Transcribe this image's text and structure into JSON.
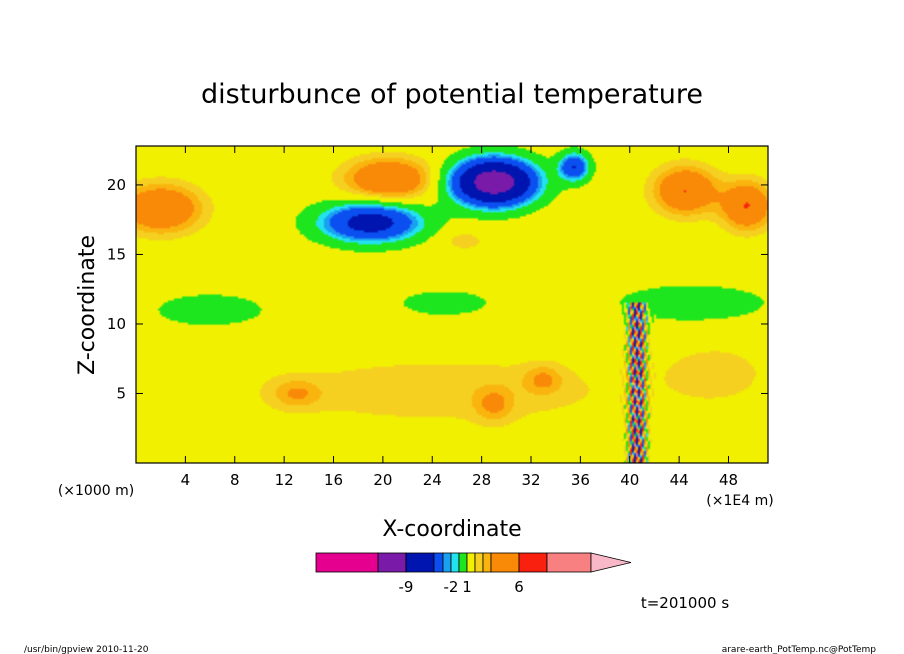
{
  "chart_data": {
    "type": "heatmap",
    "title": "disturbunce of potential temperature",
    "xlabel": "X-coordinate",
    "ylabel": "Z-coordinate",
    "x_unit_left": "(×1000 m)",
    "x_unit_right": "(×1E4 m)",
    "x_ticks": [
      4,
      8,
      12,
      16,
      20,
      24,
      28,
      32,
      36,
      40,
      44,
      48
    ],
    "y_ticks": [
      5,
      10,
      15,
      20
    ],
    "xlim": [
      0,
      51.2
    ],
    "ylim": [
      0,
      22.8
    ],
    "grid": false,
    "time_label": "t=201000 s",
    "colorbar": {
      "colors": [
        "#e5008f",
        "#7a1aa8",
        "#0015b0",
        "#0c4ff0",
        "#1aa0f0",
        "#22e2f0",
        "#1ee61e",
        "#f0f000",
        "#f5d020",
        "#f9b50e",
        "#f98a08",
        "#f92010",
        "#f98080",
        "#f9b8c8"
      ],
      "tick_labels": [
        "-9",
        "-2",
        "1",
        "6"
      ],
      "extend": "max"
    },
    "features": [
      {
        "type": "blob",
        "x": 2.0,
        "z": 18.3,
        "rx": 3.2,
        "rz": 1.7,
        "v": 3
      },
      {
        "type": "blob",
        "x": 20.5,
        "z": 20.4,
        "rx": 3.5,
        "rz": 1.5,
        "v": 3
      },
      {
        "type": "blob",
        "x": 44.5,
        "z": 19.6,
        "rx": 2.5,
        "rz": 1.7,
        "v": 3
      },
      {
        "type": "blob",
        "x": 49.5,
        "z": 18.5,
        "rx": 2.0,
        "rz": 1.7,
        "v": 3
      },
      {
        "type": "blob",
        "x": 29.0,
        "z": 20.2,
        "rx": 3.2,
        "rz": 1.6,
        "v": -9
      },
      {
        "type": "blob",
        "x": 19.0,
        "z": 17.3,
        "rx": 4.0,
        "rz": 1.4,
        "v": -5
      },
      {
        "type": "blob",
        "x": 35.5,
        "z": 21.3,
        "rx": 1.2,
        "rz": 1.0,
        "v": -4
      },
      {
        "type": "blob",
        "x": 26.5,
        "z": 16.0,
        "rx": 2.0,
        "rz": 0.8,
        "v": 0.8
      },
      {
        "type": "blob",
        "x": 6.0,
        "z": 11.0,
        "rx": 5.0,
        "rz": 1.3,
        "v": -1
      },
      {
        "type": "blob",
        "x": 25.0,
        "z": 11.5,
        "rx": 4.0,
        "rz": 1.0,
        "v": -1
      },
      {
        "type": "blob",
        "x": 45.0,
        "z": 11.5,
        "rx": 7.0,
        "rz": 1.5,
        "v": -1
      },
      {
        "type": "blob",
        "x": 25.0,
        "z": 5.2,
        "rx": 17.0,
        "rz": 2.8,
        "v": 0.8
      },
      {
        "type": "blob",
        "x": 13.0,
        "z": 5.0,
        "rx": 2.0,
        "rz": 1.0,
        "v": 1.2
      },
      {
        "type": "blob",
        "x": 29.0,
        "z": 4.2,
        "rx": 1.5,
        "rz": 1.2,
        "v": 1.2
      },
      {
        "type": "blob",
        "x": 33.0,
        "z": 6.0,
        "rx": 1.5,
        "rz": 1.0,
        "v": 1.2
      },
      {
        "type": "blob",
        "x": 47.0,
        "z": 6.5,
        "rx": 4.0,
        "rz": 2.0,
        "v": 0.8
      },
      {
        "type": "column",
        "x": 40.6,
        "z0": 0.0,
        "z1": 11.5,
        "amp": 6
      }
    ]
  },
  "footer": {
    "left": "/usr/bin/gpview   2010-11-20",
    "right": "arare-earth_PotTemp.nc@PotTemp"
  }
}
